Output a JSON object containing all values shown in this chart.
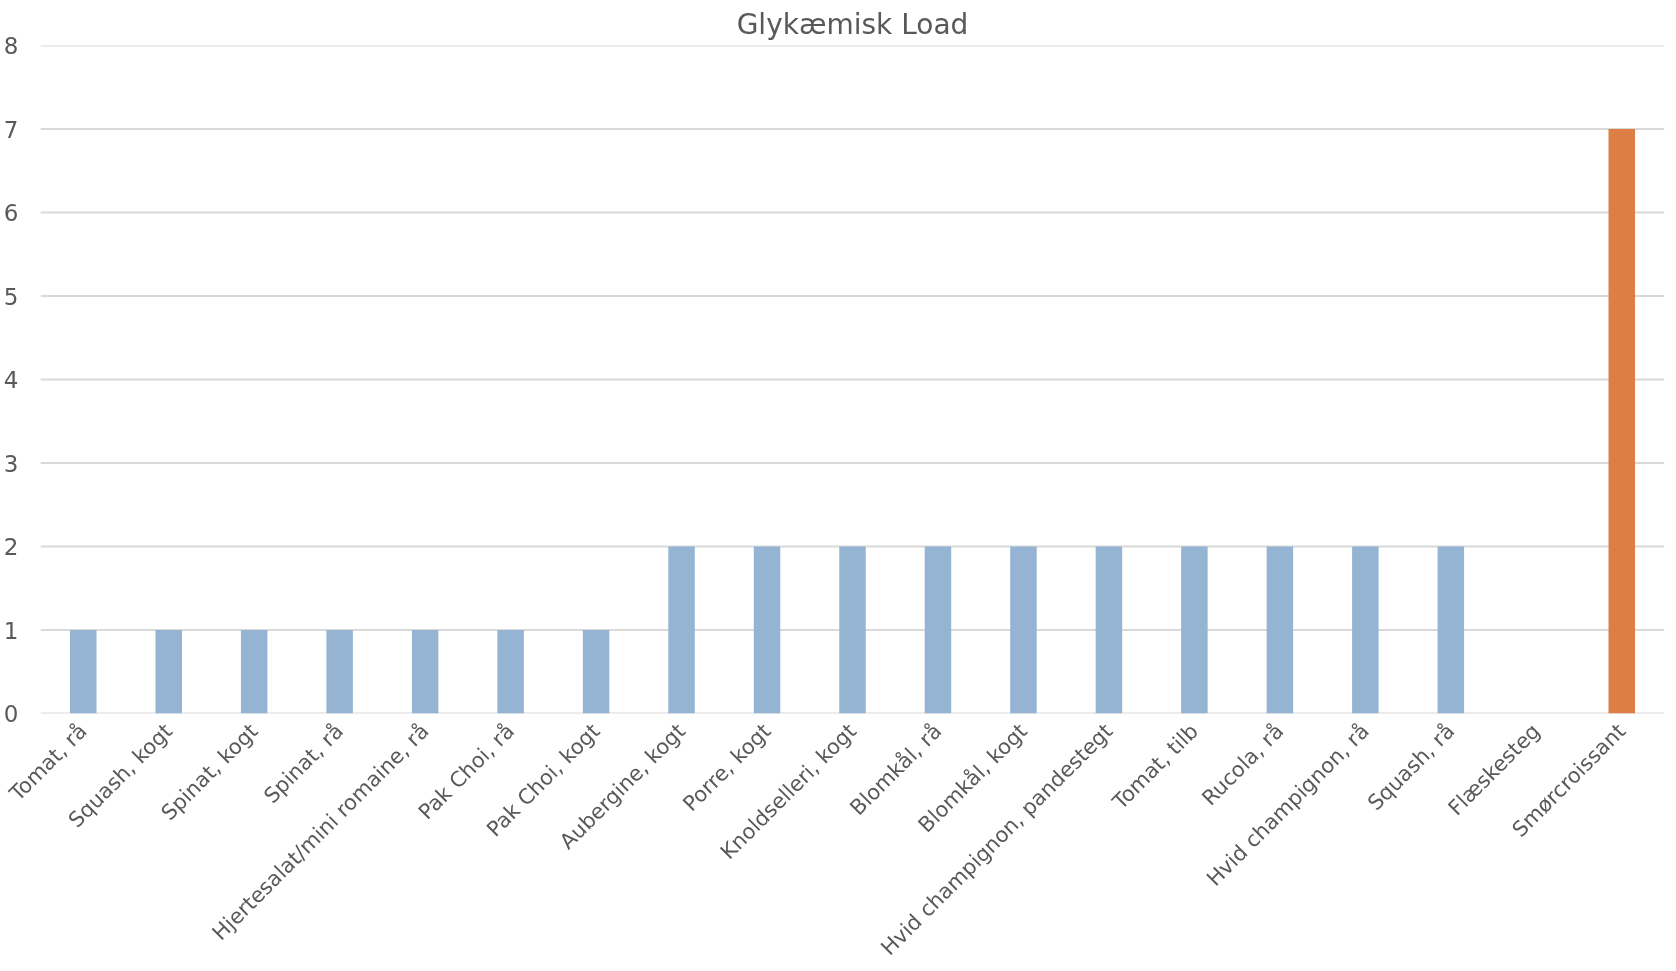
{
  "chart_data": {
    "type": "bar",
    "title": "Glykæmisk Load",
    "categories": [
      "Tomat, rå",
      "Squash, kogt",
      "Spinat, kogt",
      "Spinat, rå",
      "Hjertesalat/mini romaine, rå",
      "Pak Choi, rå",
      "Pak Choi, kogt",
      "Aubergine, kogt",
      "Porre, kogt",
      "Knoldselleri, kogt",
      "Blomkål, rå",
      "Blomkål, kogt",
      "Hvid champignon, pandestegt",
      "Tomat, tilb",
      "Rucola, rå",
      "Hvid champignon, rå",
      "Squash, rå",
      "Flæskesteg",
      "Smørcroissant"
    ],
    "values": [
      1,
      1,
      1,
      1,
      1,
      1,
      1,
      2,
      2,
      2,
      2,
      2,
      2,
      2,
      2,
      2,
      2,
      0,
      7
    ],
    "colors": [
      "#95b4d3",
      "#95b4d3",
      "#95b4d3",
      "#95b4d3",
      "#95b4d3",
      "#95b4d3",
      "#95b4d3",
      "#95b4d3",
      "#95b4d3",
      "#95b4d3",
      "#95b4d3",
      "#95b4d3",
      "#95b4d3",
      "#95b4d3",
      "#95b4d3",
      "#95b4d3",
      "#95b4d3",
      "#95b4d3",
      "#dd7f45"
    ],
    "ylim": [
      0,
      8
    ],
    "yticks": [
      0,
      1,
      2,
      3,
      4,
      5,
      6,
      7,
      8
    ],
    "grid": "y"
  }
}
